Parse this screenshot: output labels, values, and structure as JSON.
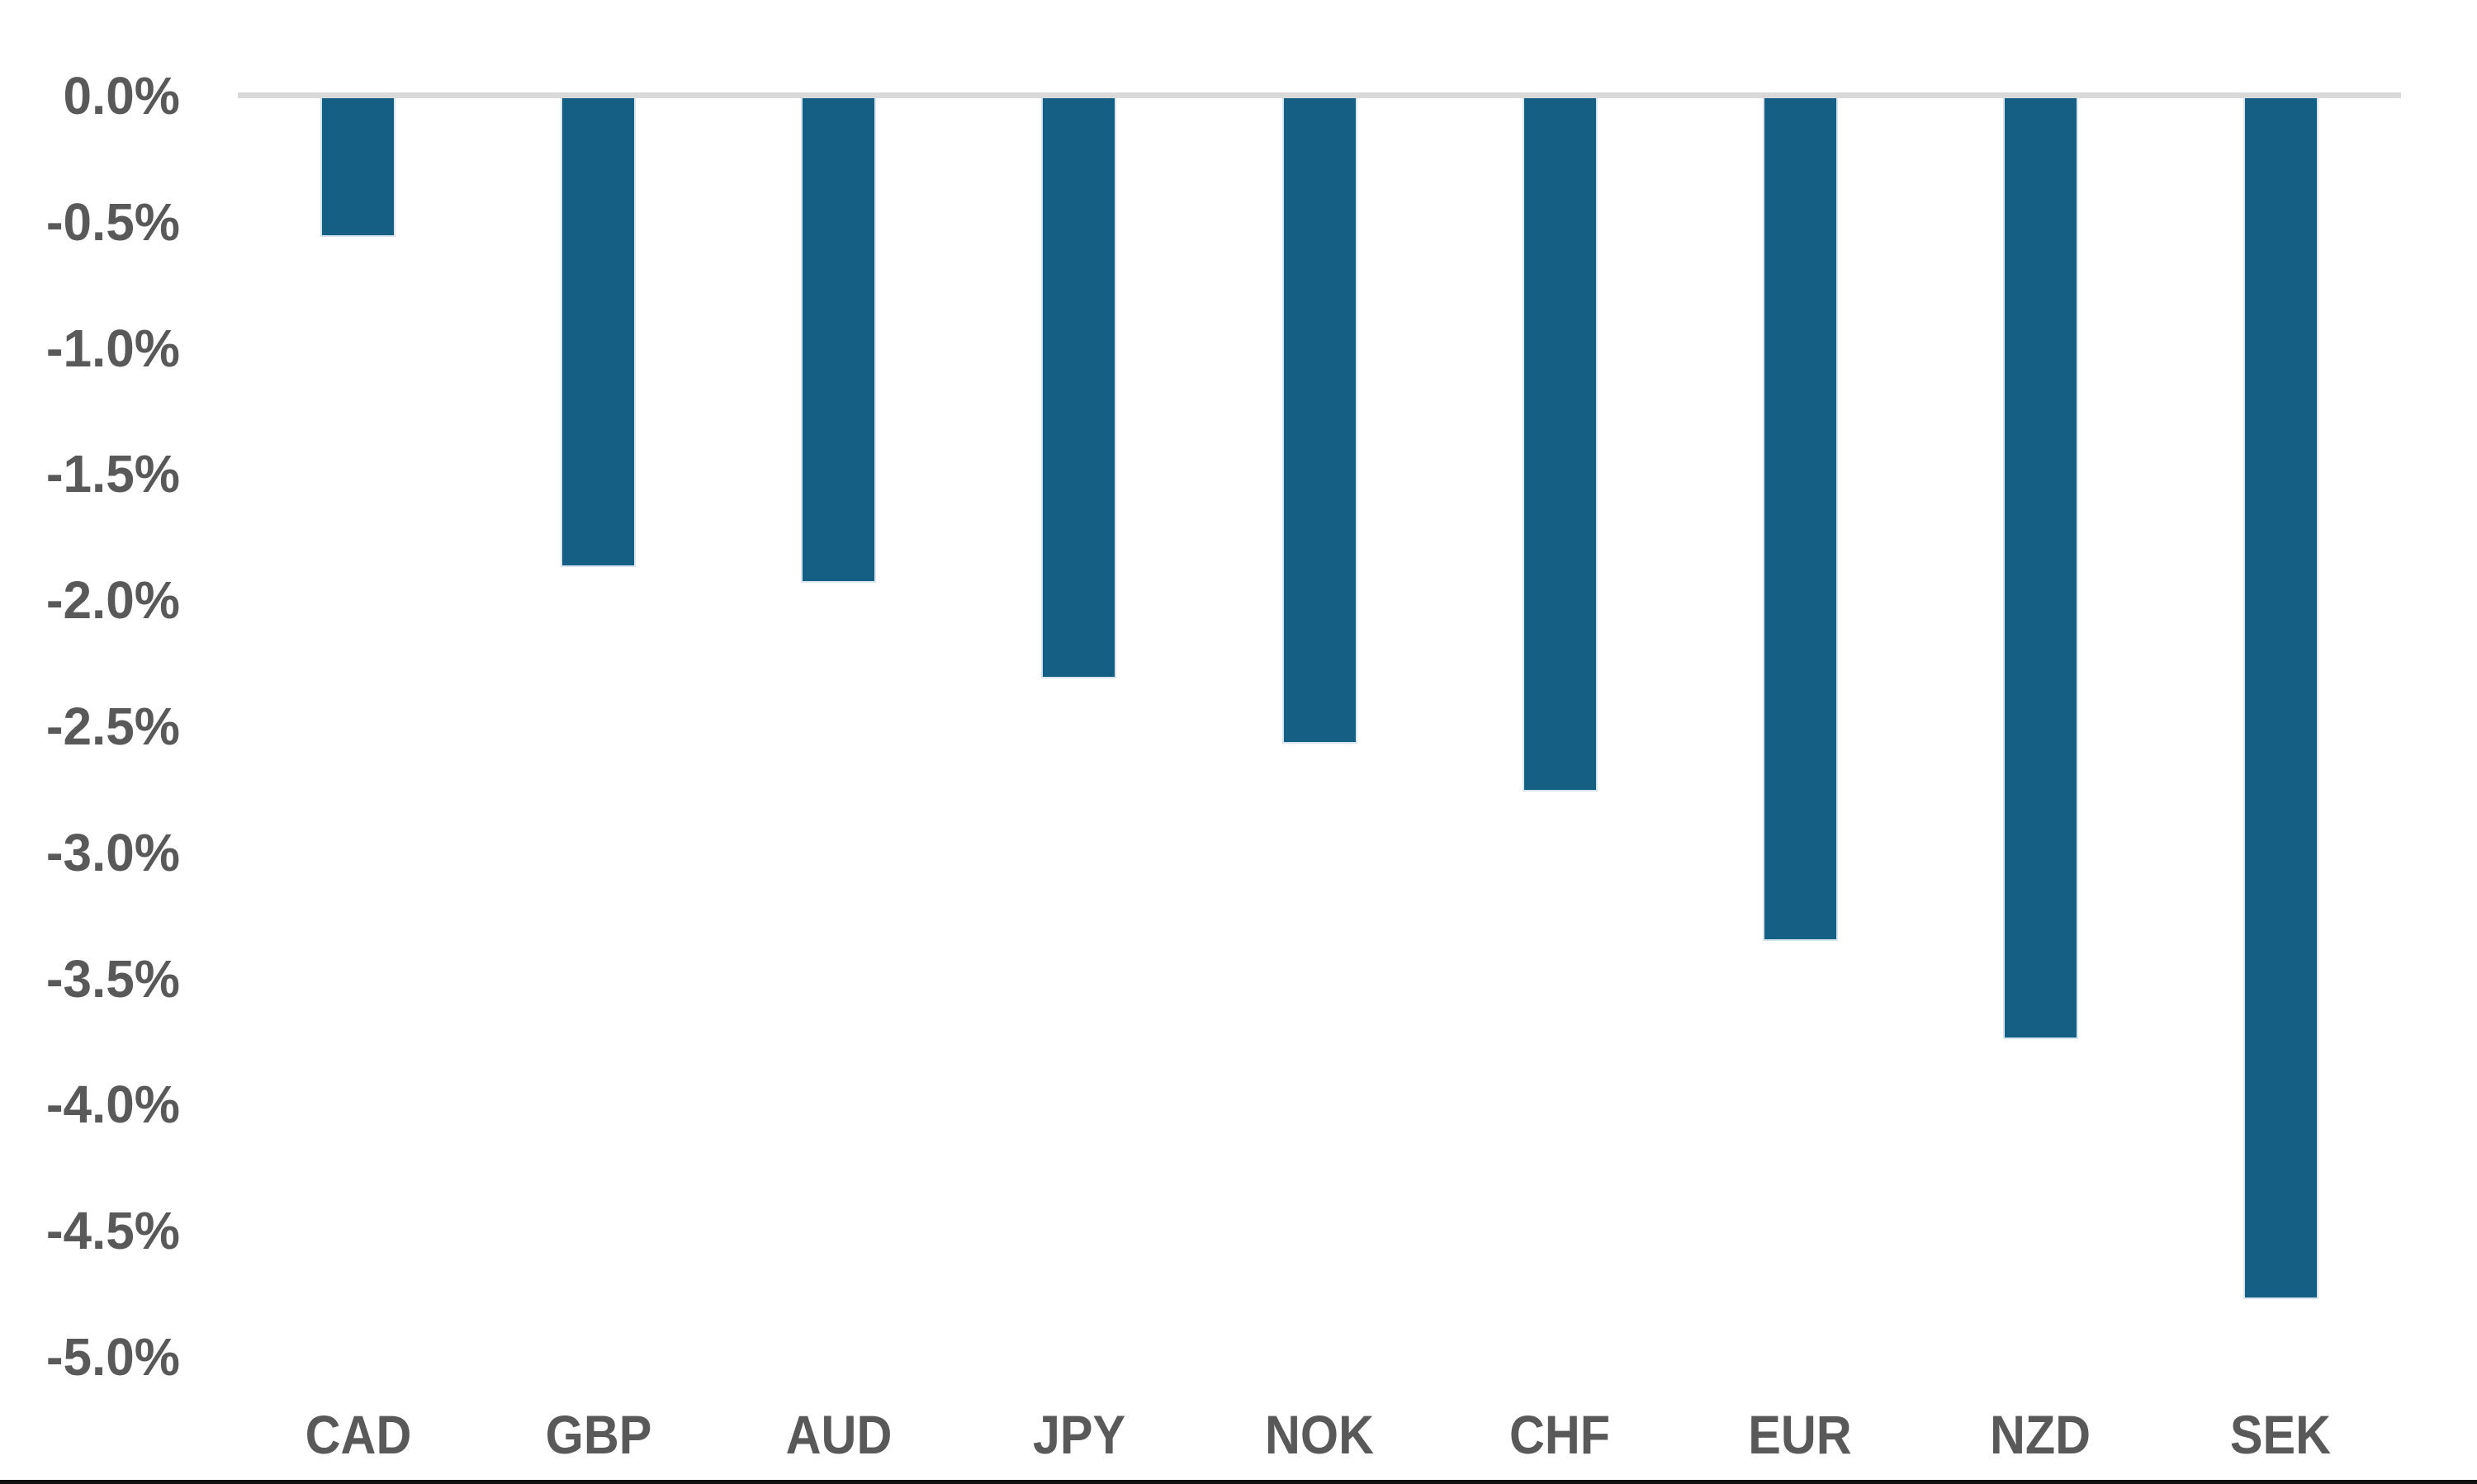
{
  "chart_data": {
    "type": "bar",
    "title": "",
    "orientation": "vertical-negative",
    "categories": [
      "CAD",
      "GBP",
      "AUD",
      "JPY",
      "NOK",
      "CHF",
      "EUR",
      "NZD",
      "SEK"
    ],
    "values": [
      -0.56,
      -1.87,
      -1.93,
      -2.31,
      -2.57,
      -2.76,
      -3.35,
      -3.74,
      -4.77
    ],
    "value_unit": "%",
    "xlabel": "",
    "ylabel": "",
    "ylim": [
      -5.0,
      0.0
    ],
    "y_tick_step": 0.5,
    "y_tick_labels": [
      "0.0%",
      "-0.5%",
      "-1.0%",
      "-1.5%",
      "-2.0%",
      "-2.5%",
      "-3.0%",
      "-3.5%",
      "-4.0%",
      "-4.5%",
      "-5.0%"
    ],
    "grid": "zero-line-only",
    "legend_position": "none",
    "colors": {
      "bar_fill": "#145f83",
      "bar_border": "#d7e5ef",
      "axis_text": "#595959",
      "zero_line": "#d9d9d9",
      "bottom_rule": "#111111",
      "background": "#ffffff"
    }
  }
}
